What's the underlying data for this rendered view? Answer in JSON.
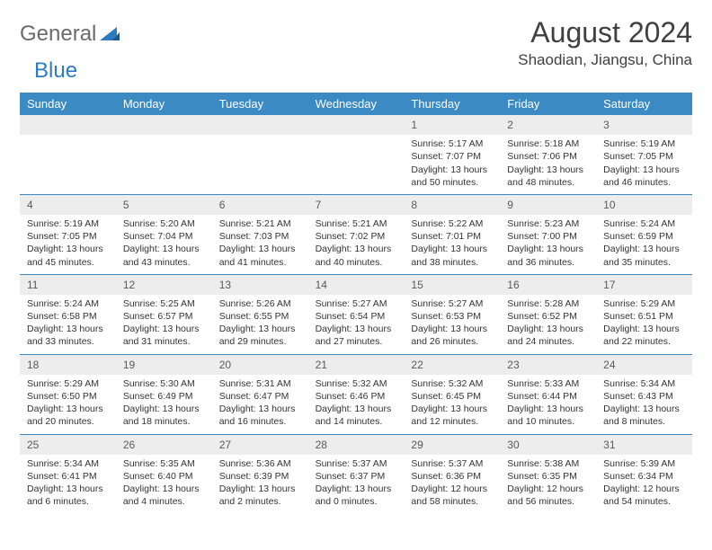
{
  "logo": {
    "word1": "General",
    "word2": "Blue"
  },
  "title": "August 2024",
  "location": "Shaodian, Jiangsu, China",
  "colors": {
    "header_bg": "#3b8ac4",
    "header_text": "#ffffff",
    "daynum_bg": "#ededed",
    "daynum_text": "#5a5a5a",
    "body_text": "#333333",
    "logo_gray": "#6a6a6a",
    "logo_blue": "#2f7bbf",
    "row_border": "#3b8ac4",
    "page_bg": "#ffffff"
  },
  "typography": {
    "title_fontsize": 32,
    "location_fontsize": 17,
    "logo_fontsize": 24,
    "dayheader_fontsize": 13,
    "daynum_fontsize": 12,
    "cell_fontsize": 10.5
  },
  "day_names": [
    "Sunday",
    "Monday",
    "Tuesday",
    "Wednesday",
    "Thursday",
    "Friday",
    "Saturday"
  ],
  "weeks": [
    [
      null,
      null,
      null,
      null,
      {
        "n": "1",
        "sr": "5:17 AM",
        "ss": "7:07 PM",
        "dl": "13 hours and 50 minutes."
      },
      {
        "n": "2",
        "sr": "5:18 AM",
        "ss": "7:06 PM",
        "dl": "13 hours and 48 minutes."
      },
      {
        "n": "3",
        "sr": "5:19 AM",
        "ss": "7:05 PM",
        "dl": "13 hours and 46 minutes."
      }
    ],
    [
      {
        "n": "4",
        "sr": "5:19 AM",
        "ss": "7:05 PM",
        "dl": "13 hours and 45 minutes."
      },
      {
        "n": "5",
        "sr": "5:20 AM",
        "ss": "7:04 PM",
        "dl": "13 hours and 43 minutes."
      },
      {
        "n": "6",
        "sr": "5:21 AM",
        "ss": "7:03 PM",
        "dl": "13 hours and 41 minutes."
      },
      {
        "n": "7",
        "sr": "5:21 AM",
        "ss": "7:02 PM",
        "dl": "13 hours and 40 minutes."
      },
      {
        "n": "8",
        "sr": "5:22 AM",
        "ss": "7:01 PM",
        "dl": "13 hours and 38 minutes."
      },
      {
        "n": "9",
        "sr": "5:23 AM",
        "ss": "7:00 PM",
        "dl": "13 hours and 36 minutes."
      },
      {
        "n": "10",
        "sr": "5:24 AM",
        "ss": "6:59 PM",
        "dl": "13 hours and 35 minutes."
      }
    ],
    [
      {
        "n": "11",
        "sr": "5:24 AM",
        "ss": "6:58 PM",
        "dl": "13 hours and 33 minutes."
      },
      {
        "n": "12",
        "sr": "5:25 AM",
        "ss": "6:57 PM",
        "dl": "13 hours and 31 minutes."
      },
      {
        "n": "13",
        "sr": "5:26 AM",
        "ss": "6:55 PM",
        "dl": "13 hours and 29 minutes."
      },
      {
        "n": "14",
        "sr": "5:27 AM",
        "ss": "6:54 PM",
        "dl": "13 hours and 27 minutes."
      },
      {
        "n": "15",
        "sr": "5:27 AM",
        "ss": "6:53 PM",
        "dl": "13 hours and 26 minutes."
      },
      {
        "n": "16",
        "sr": "5:28 AM",
        "ss": "6:52 PM",
        "dl": "13 hours and 24 minutes."
      },
      {
        "n": "17",
        "sr": "5:29 AM",
        "ss": "6:51 PM",
        "dl": "13 hours and 22 minutes."
      }
    ],
    [
      {
        "n": "18",
        "sr": "5:29 AM",
        "ss": "6:50 PM",
        "dl": "13 hours and 20 minutes."
      },
      {
        "n": "19",
        "sr": "5:30 AM",
        "ss": "6:49 PM",
        "dl": "13 hours and 18 minutes."
      },
      {
        "n": "20",
        "sr": "5:31 AM",
        "ss": "6:47 PM",
        "dl": "13 hours and 16 minutes."
      },
      {
        "n": "21",
        "sr": "5:32 AM",
        "ss": "6:46 PM",
        "dl": "13 hours and 14 minutes."
      },
      {
        "n": "22",
        "sr": "5:32 AM",
        "ss": "6:45 PM",
        "dl": "13 hours and 12 minutes."
      },
      {
        "n": "23",
        "sr": "5:33 AM",
        "ss": "6:44 PM",
        "dl": "13 hours and 10 minutes."
      },
      {
        "n": "24",
        "sr": "5:34 AM",
        "ss": "6:43 PM",
        "dl": "13 hours and 8 minutes."
      }
    ],
    [
      {
        "n": "25",
        "sr": "5:34 AM",
        "ss": "6:41 PM",
        "dl": "13 hours and 6 minutes."
      },
      {
        "n": "26",
        "sr": "5:35 AM",
        "ss": "6:40 PM",
        "dl": "13 hours and 4 minutes."
      },
      {
        "n": "27",
        "sr": "5:36 AM",
        "ss": "6:39 PM",
        "dl": "13 hours and 2 minutes."
      },
      {
        "n": "28",
        "sr": "5:37 AM",
        "ss": "6:37 PM",
        "dl": "13 hours and 0 minutes."
      },
      {
        "n": "29",
        "sr": "5:37 AM",
        "ss": "6:36 PM",
        "dl": "12 hours and 58 minutes."
      },
      {
        "n": "30",
        "sr": "5:38 AM",
        "ss": "6:35 PM",
        "dl": "12 hours and 56 minutes."
      },
      {
        "n": "31",
        "sr": "5:39 AM",
        "ss": "6:34 PM",
        "dl": "12 hours and 54 minutes."
      }
    ]
  ],
  "labels": {
    "sunrise": "Sunrise:",
    "sunset": "Sunset:",
    "daylight": "Daylight:"
  }
}
